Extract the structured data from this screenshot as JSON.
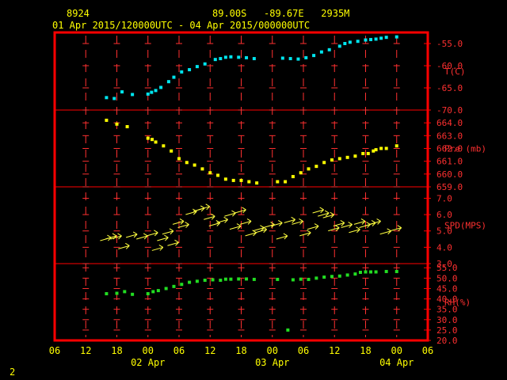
{
  "header": {
    "station_id": "8924",
    "location": "89.00S   -89.67E   2935M",
    "time_range": "01 Apr 2015/120000UTC - 04 Apr 2015/000000UTC",
    "page_number": "2"
  },
  "colors": {
    "background": "#000000",
    "frame": "#ff0000",
    "grid": "#ff3030",
    "text": "#ffff00",
    "temperature": "#00e5ee",
    "pressure": "#ffff00",
    "wind": "#ffff40",
    "humidity": "#22dd22"
  },
  "chart_data": {
    "type": "scatter",
    "x_unit": "hours since 01 Apr 2015 06UTC",
    "x_range": [
      0,
      72
    ],
    "x_tick_labels": [
      "06",
      "12",
      "18",
      "00",
      "06",
      "12",
      "18",
      "00",
      "06",
      "12",
      "18",
      "00",
      "06"
    ],
    "x_date_labels": [
      {
        "x": 18,
        "label": "02 Apr"
      },
      {
        "x": 42,
        "label": "03 Apr"
      },
      {
        "x": 66,
        "label": "04 Apr"
      }
    ],
    "panels": [
      {
        "name": "T(C)",
        "label": "T(C)",
        "ylim": [
          -70,
          -52.5
        ],
        "ticks": [
          "-55.0",
          "-60.0",
          "-65.0",
          "-70.0"
        ],
        "tick_values": [
          -55,
          -60,
          -65,
          -70
        ],
        "series": [
          {
            "name": "T(C)",
            "x": [
              10,
              11.5,
              13,
              15,
              18,
              18.7,
              19.5,
              20.5,
              22,
              23,
              24.5,
              26,
              27.5,
              29,
              31,
              32,
              33,
              34,
              35.5,
              37,
              38.5,
              44,
              45.5,
              47,
              48.5,
              50,
              51.5,
              53,
              55,
              56,
              57,
              58.5,
              60,
              61,
              62,
              63,
              64,
              66
            ],
            "y": [
              -67.2,
              -67.4,
              -65.9,
              -66.5,
              -66.4,
              -66.0,
              -65.6,
              -64.9,
              -63.6,
              -62.6,
              -61.4,
              -60.9,
              -60.2,
              -59.6,
              -58.6,
              -58.4,
              -58.1,
              -58.0,
              -58.1,
              -58.2,
              -58.4,
              -58.3,
              -58.4,
              -58.5,
              -58.2,
              -57.7,
              -56.9,
              -56.4,
              -55.6,
              -55.0,
              -54.7,
              -54.5,
              -54.2,
              -54.1,
              -54.0,
              -53.8,
              -53.6,
              -53.5
            ]
          }
        ]
      },
      {
        "name": "Pre (mb)",
        "label": "Pre (mb)",
        "ylim": [
          659,
          665
        ],
        "ticks": [
          "664.0",
          "663.0",
          "662.0",
          "661.0",
          "660.0",
          "659.0"
        ],
        "tick_values": [
          664,
          663,
          662,
          661,
          660,
          659
        ],
        "series": [
          {
            "name": "Pre (mb)",
            "x": [
              10,
              12,
              14,
              18,
              18.8,
              19.5,
              21,
              22.5,
              24,
              25.5,
              27,
              28.5,
              30,
              31.5,
              33,
              34.5,
              36,
              37.5,
              39,
              43,
              44.5,
              46,
              47.5,
              49,
              50.5,
              52,
              53.5,
              55,
              56.5,
              58,
              59.5,
              60.5,
              61.5,
              62,
              63,
              64,
              66
            ],
            "y": [
              664.2,
              663.9,
              663.7,
              662.8,
              662.7,
              662.5,
              662.2,
              661.8,
              661.2,
              660.9,
              660.7,
              660.4,
              660.1,
              659.9,
              659.6,
              659.5,
              659.5,
              659.4,
              659.3,
              659.4,
              659.4,
              659.8,
              660.1,
              660.4,
              660.6,
              660.9,
              661.1,
              661.2,
              661.3,
              661.4,
              661.6,
              661.6,
              661.8,
              661.9,
              662.0,
              662.0,
              662.2
            ]
          }
        ]
      },
      {
        "name": "SPD(MPS)",
        "label": "SPD(MPS)",
        "ylim": [
          3,
          7.7
        ],
        "ticks": [
          "7.0",
          "6.0",
          "5.0",
          "4.0",
          "3.0"
        ],
        "tick_values": [
          7,
          6,
          5,
          4,
          3
        ],
        "series": [
          {
            "name": "SPD(MPS)",
            "x": [
              10,
              11,
              12,
              13.5,
              15,
              17,
              19,
              20,
              21,
              22,
              23,
              24,
              25,
              26.5,
              28,
              29,
              30,
              31,
              32.5,
              34,
              35,
              36,
              37,
              38,
              39.5,
              40,
              41.5,
              43,
              44,
              45.5,
              47,
              48.5,
              50,
              51,
              52,
              53,
              54,
              55,
              56.5,
              58,
              59,
              60,
              61,
              62,
              64,
              66
            ],
            "y": [
              4.5,
              4.6,
              4.6,
              4.0,
              4.7,
              4.6,
              4.8,
              3.9,
              4.5,
              4.9,
              4.2,
              5.5,
              5.3,
              6.1,
              6.3,
              6.4,
              5.8,
              5.4,
              5.6,
              6.0,
              5.2,
              6.2,
              5.5,
              4.8,
              5.1,
              5.0,
              5.3,
              5.4,
              4.6,
              5.6,
              5.5,
              4.8,
              5.2,
              6.2,
              6.0,
              5.9,
              5.1,
              5.4,
              5.3,
              5.0,
              5.5,
              5.3,
              5.4,
              5.5,
              4.9,
              5.1
            ]
          }
        ]
      },
      {
        "name": "RH(%)",
        "label": "RH(%)",
        "ylim": [
          20,
          57
        ],
        "ticks": [
          "55.0",
          "50.0",
          "45.0",
          "40.0",
          "35.0",
          "30.0",
          "25.0",
          "20.0"
        ],
        "tick_values": [
          55,
          50,
          45,
          40,
          35,
          30,
          25,
          20
        ],
        "series": [
          {
            "name": "RH(%)",
            "x": [
              10,
              12,
              13.5,
              15,
              18,
              19,
              20,
              21.5,
              23,
              24.5,
              26,
              27.5,
              29,
              30.5,
              32,
              33,
              34,
              35.5,
              37,
              38.5,
              43,
              45,
              46,
              47.5,
              49,
              50.5,
              52,
              53.5,
              55,
              56.5,
              58,
              59,
              60,
              61,
              62,
              64,
              66
            ],
            "y": [
              42.5,
              42.7,
              43.5,
              42.2,
              42.5,
              43.5,
              44.0,
              45.0,
              46.0,
              47.0,
              48.0,
              48.5,
              49.0,
              49.2,
              49.0,
              49.5,
              49.5,
              49.6,
              49.6,
              49.4,
              49.4,
              25.0,
              49.2,
              49.5,
              49.4,
              50.0,
              50.5,
              50.8,
              51.0,
              51.5,
              52.0,
              52.8,
              53.0,
              53.0,
              53.0,
              53.2,
              53.2
            ]
          }
        ]
      }
    ]
  }
}
